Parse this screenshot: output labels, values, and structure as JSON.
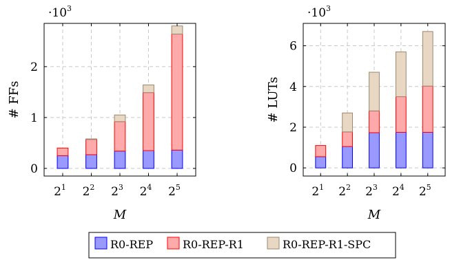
{
  "colors": {
    "R0-REP": {
      "fill": "#9999ff",
      "stroke": "#0000ff"
    },
    "R0-REP-R1": {
      "fill": "#ffaaaa",
      "stroke": "#ff0000"
    },
    "R0-REP-R1-SPC": {
      "fill": "#e8d8c3",
      "stroke": "#9a8670"
    },
    "grid": "#c8c8c8"
  },
  "legend": {
    "items": [
      {
        "key": "R0-REP",
        "label": "R0-REP"
      },
      {
        "key": "R0-REP-R1",
        "label": "R0-REP-R1"
      },
      {
        "key": "R0-REP-R1-SPC",
        "label": "R0-REP-R1-SPC"
      }
    ]
  },
  "chart_data": [
    {
      "type": "bar",
      "stacked": true,
      "title": "",
      "xlabel": "M",
      "ylabel": "# FFs",
      "y_multiplier_label": "·10",
      "y_multiplier_exp": "3",
      "categories": [
        "2^1",
        "2^2",
        "2^3",
        "2^4",
        "2^5"
      ],
      "category_base": "2",
      "category_exps": [
        "1",
        "2",
        "3",
        "4",
        "5"
      ],
      "yticks": [
        0,
        1,
        2
      ],
      "ylim": [
        -0.15,
        2.85
      ],
      "grid": true,
      "series": [
        {
          "name": "R0-REP",
          "values": [
            0.25,
            0.27,
            0.34,
            0.35,
            0.36
          ]
        },
        {
          "name": "R0-REP-R1",
          "values": [
            0.15,
            0.3,
            0.58,
            1.14,
            2.28
          ]
        },
        {
          "name": "R0-REP-R1-SPC",
          "values": [
            0.0,
            0.01,
            0.13,
            0.15,
            0.16
          ]
        }
      ]
    },
    {
      "type": "bar",
      "stacked": true,
      "title": "",
      "xlabel": "M",
      "ylabel": "# LUTs",
      "y_multiplier_label": "·10",
      "y_multiplier_exp": "3",
      "categories": [
        "2^1",
        "2^2",
        "2^3",
        "2^4",
        "2^5"
      ],
      "category_base": "2",
      "category_exps": [
        "1",
        "2",
        "3",
        "4",
        "5"
      ],
      "yticks": [
        0,
        2,
        4,
        6
      ],
      "ylim": [
        -0.4,
        7.1
      ],
      "grid": true,
      "series": [
        {
          "name": "R0-REP",
          "values": [
            0.55,
            1.05,
            1.73,
            1.75,
            1.75
          ]
        },
        {
          "name": "R0-REP-R1",
          "values": [
            0.55,
            0.72,
            1.07,
            1.75,
            2.27
          ]
        },
        {
          "name": "R0-REP-R1-SPC",
          "values": [
            0.0,
            0.93,
            1.9,
            2.2,
            2.68
          ]
        }
      ]
    }
  ]
}
